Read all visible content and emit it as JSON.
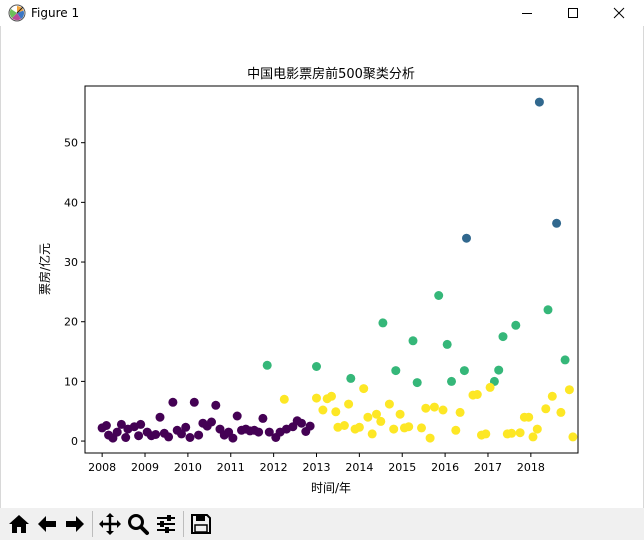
{
  "window": {
    "title": "Figure 1",
    "icons": [
      "matplotlib-icon",
      "minimize-icon",
      "maximize-icon",
      "close-icon"
    ]
  },
  "toolbar": {
    "buttons": [
      "home-icon",
      "back-icon",
      "forward-icon",
      "pan-icon",
      "zoom-icon",
      "configure-subplots-icon",
      "save-icon"
    ]
  },
  "chart_data": {
    "type": "scatter",
    "title": "中国电影票房前500聚类分析",
    "xlabel": "时间/年",
    "ylabel": "票房/亿元",
    "xlim": [
      2007.6,
      2019.1
    ],
    "ylim": [
      -2,
      59.5
    ],
    "xticks": [
      "2008",
      "2009",
      "2010",
      "2011",
      "2012",
      "2013",
      "2014",
      "2015",
      "2016",
      "2017",
      "2018"
    ],
    "yticks": [
      "0",
      "10",
      "20",
      "30",
      "40",
      "50"
    ],
    "grid": false,
    "legend": "none",
    "cluster_colors": [
      "#440154",
      "#31688e",
      "#35b779",
      "#fde725"
    ],
    "series": [
      {
        "color": "#440154",
        "points": [
          [
            2008.0,
            2.2
          ],
          [
            2008.1,
            2.6
          ],
          [
            2008.15,
            1.0
          ],
          [
            2008.25,
            0.5
          ],
          [
            2008.35,
            1.5
          ],
          [
            2008.45,
            2.8
          ],
          [
            2008.55,
            0.6
          ],
          [
            2008.6,
            2.0
          ],
          [
            2008.75,
            2.4
          ],
          [
            2008.85,
            0.9
          ],
          [
            2008.9,
            2.8
          ],
          [
            2009.05,
            1.5
          ],
          [
            2009.15,
            0.9
          ],
          [
            2009.25,
            1.1
          ],
          [
            2009.35,
            4.0
          ],
          [
            2009.45,
            1.3
          ],
          [
            2009.55,
            0.7
          ],
          [
            2009.65,
            6.5
          ],
          [
            2009.75,
            1.8
          ],
          [
            2009.85,
            1.2
          ],
          [
            2009.95,
            2.3
          ],
          [
            2010.05,
            0.6
          ],
          [
            2010.15,
            6.5
          ],
          [
            2010.25,
            1.0
          ],
          [
            2010.35,
            3.0
          ],
          [
            2010.45,
            2.5
          ],
          [
            2010.55,
            3.2
          ],
          [
            2010.65,
            6.0
          ],
          [
            2010.75,
            2.0
          ],
          [
            2010.85,
            1.0
          ],
          [
            2010.95,
            1.5
          ],
          [
            2011.05,
            0.5
          ],
          [
            2011.15,
            4.2
          ],
          [
            2011.25,
            1.8
          ],
          [
            2011.35,
            2.0
          ],
          [
            2011.45,
            1.7
          ],
          [
            2011.55,
            1.8
          ],
          [
            2011.65,
            1.5
          ],
          [
            2011.75,
            3.8
          ],
          [
            2011.9,
            1.5
          ],
          [
            2012.05,
            0.6
          ],
          [
            2012.15,
            1.5
          ],
          [
            2012.3,
            2.0
          ],
          [
            2012.45,
            2.4
          ],
          [
            2012.55,
            3.4
          ],
          [
            2012.65,
            3.0
          ],
          [
            2012.75,
            1.6
          ],
          [
            2012.85,
            2.5
          ]
        ]
      },
      {
        "color": "#31688e",
        "points": [
          [
            2016.5,
            34.0
          ],
          [
            2018.2,
            56.8
          ],
          [
            2018.6,
            36.5
          ]
        ]
      },
      {
        "color": "#35b779",
        "points": [
          [
            2011.85,
            12.7
          ],
          [
            2013.0,
            12.5
          ],
          [
            2013.8,
            10.5
          ],
          [
            2014.55,
            19.8
          ],
          [
            2014.85,
            11.8
          ],
          [
            2015.25,
            16.8
          ],
          [
            2015.35,
            9.8
          ],
          [
            2015.85,
            24.4
          ],
          [
            2016.05,
            16.2
          ],
          [
            2016.15,
            10.0
          ],
          [
            2016.45,
            11.8
          ],
          [
            2017.15,
            10.0
          ],
          [
            2017.25,
            11.9
          ],
          [
            2017.35,
            17.5
          ],
          [
            2017.65,
            19.4
          ],
          [
            2018.4,
            22.0
          ],
          [
            2018.8,
            13.6
          ]
        ]
      },
      {
        "color": "#fde725",
        "points": [
          [
            2012.25,
            7.0
          ],
          [
            2013.0,
            7.2
          ],
          [
            2013.15,
            5.2
          ],
          [
            2013.25,
            7.1
          ],
          [
            2013.35,
            7.5
          ],
          [
            2013.45,
            4.9
          ],
          [
            2013.5,
            2.3
          ],
          [
            2013.65,
            2.6
          ],
          [
            2013.75,
            6.2
          ],
          [
            2013.9,
            2.0
          ],
          [
            2014.0,
            2.3
          ],
          [
            2014.1,
            8.8
          ],
          [
            2014.2,
            4.0
          ],
          [
            2014.3,
            1.2
          ],
          [
            2014.4,
            4.5
          ],
          [
            2014.5,
            3.3
          ],
          [
            2014.7,
            6.2
          ],
          [
            2014.8,
            2.0
          ],
          [
            2014.95,
            4.5
          ],
          [
            2015.05,
            2.2
          ],
          [
            2015.15,
            2.4
          ],
          [
            2015.45,
            2.2
          ],
          [
            2015.55,
            5.5
          ],
          [
            2015.65,
            0.5
          ],
          [
            2015.75,
            5.7
          ],
          [
            2015.95,
            5.2
          ],
          [
            2016.25,
            1.8
          ],
          [
            2016.35,
            4.8
          ],
          [
            2016.65,
            7.7
          ],
          [
            2016.75,
            7.8
          ],
          [
            2016.85,
            1.0
          ],
          [
            2016.95,
            1.2
          ],
          [
            2017.05,
            9.0
          ],
          [
            2017.45,
            1.2
          ],
          [
            2017.55,
            1.3
          ],
          [
            2017.75,
            1.4
          ],
          [
            2017.85,
            4.0
          ],
          [
            2017.95,
            4.0
          ],
          [
            2018.05,
            0.7
          ],
          [
            2018.15,
            2.0
          ],
          [
            2018.35,
            5.4
          ],
          [
            2018.5,
            7.5
          ],
          [
            2018.7,
            4.8
          ],
          [
            2018.9,
            8.6
          ],
          [
            2018.98,
            0.7
          ]
        ]
      }
    ]
  }
}
